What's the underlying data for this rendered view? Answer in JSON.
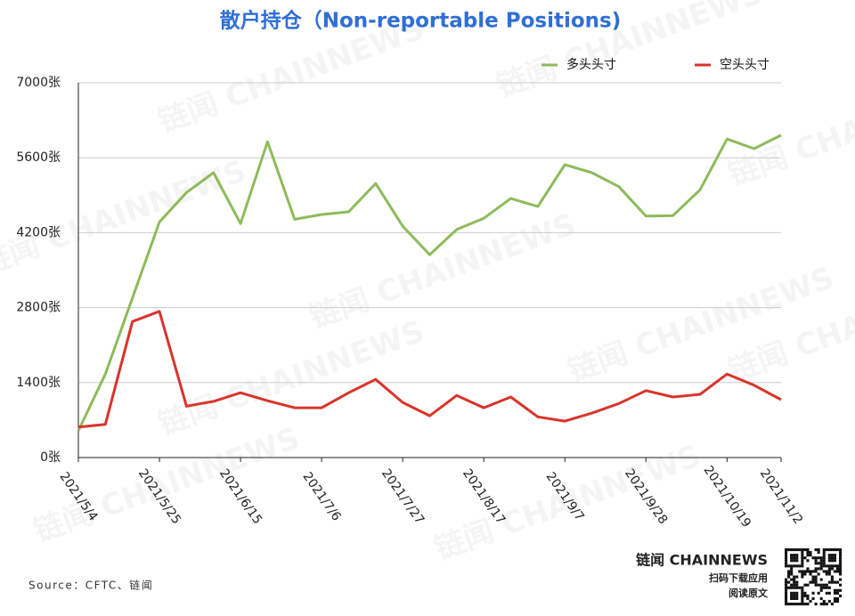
{
  "chart_data": {
    "type": "line",
    "title": "散户持仓（Non-reportable Positions)",
    "categories": [
      "2021/5/4",
      null,
      null,
      "2021/5/25",
      null,
      null,
      "2021/6/15",
      null,
      null,
      "2021/7/6",
      null,
      null,
      "2021/7/27",
      null,
      null,
      "2021/8/17",
      null,
      null,
      "2021/9/7",
      null,
      null,
      "2021/9/28",
      null,
      null,
      "2021/10/19",
      null,
      "2021/11/2"
    ],
    "series": [
      {
        "name": "多头头寸",
        "color": "#8dbb5a",
        "values": [
          500,
          1560,
          2980,
          4400,
          4950,
          5320,
          4370,
          5900,
          4450,
          4540,
          4590,
          5120,
          4320,
          3790,
          4260,
          4470,
          4840,
          4690,
          5470,
          5320,
          5060,
          4510,
          4520,
          5000,
          5950,
          5770,
          6020
        ]
      },
      {
        "name": "空头头寸",
        "color": "#d9342b",
        "values": [
          570,
          620,
          2540,
          2730,
          960,
          1050,
          1210,
          1060,
          930,
          930,
          1210,
          1460,
          1030,
          780,
          1160,
          930,
          1130,
          760,
          680,
          830,
          1010,
          1250,
          1130,
          1180,
          1560,
          1350,
          1080
        ]
      }
    ],
    "ylim": [
      0,
      7000
    ],
    "yticks": [
      {
        "value": 0,
        "label": "0张"
      },
      {
        "value": 1400,
        "label": "1400张"
      },
      {
        "value": 2800,
        "label": "2800张"
      },
      {
        "value": 4200,
        "label": "4200张"
      },
      {
        "value": 5600,
        "label": "5600张"
      },
      {
        "value": 7000,
        "label": "7000张"
      }
    ],
    "grid": true,
    "legend": "top-right",
    "source": "Source：CFTC、链闻",
    "brand": "链闻 CHAINNEWS",
    "brand_line1": "扫码下载应用",
    "brand_line2": "阅读原文",
    "watermark": "链闻 CHAINNEWS"
  }
}
